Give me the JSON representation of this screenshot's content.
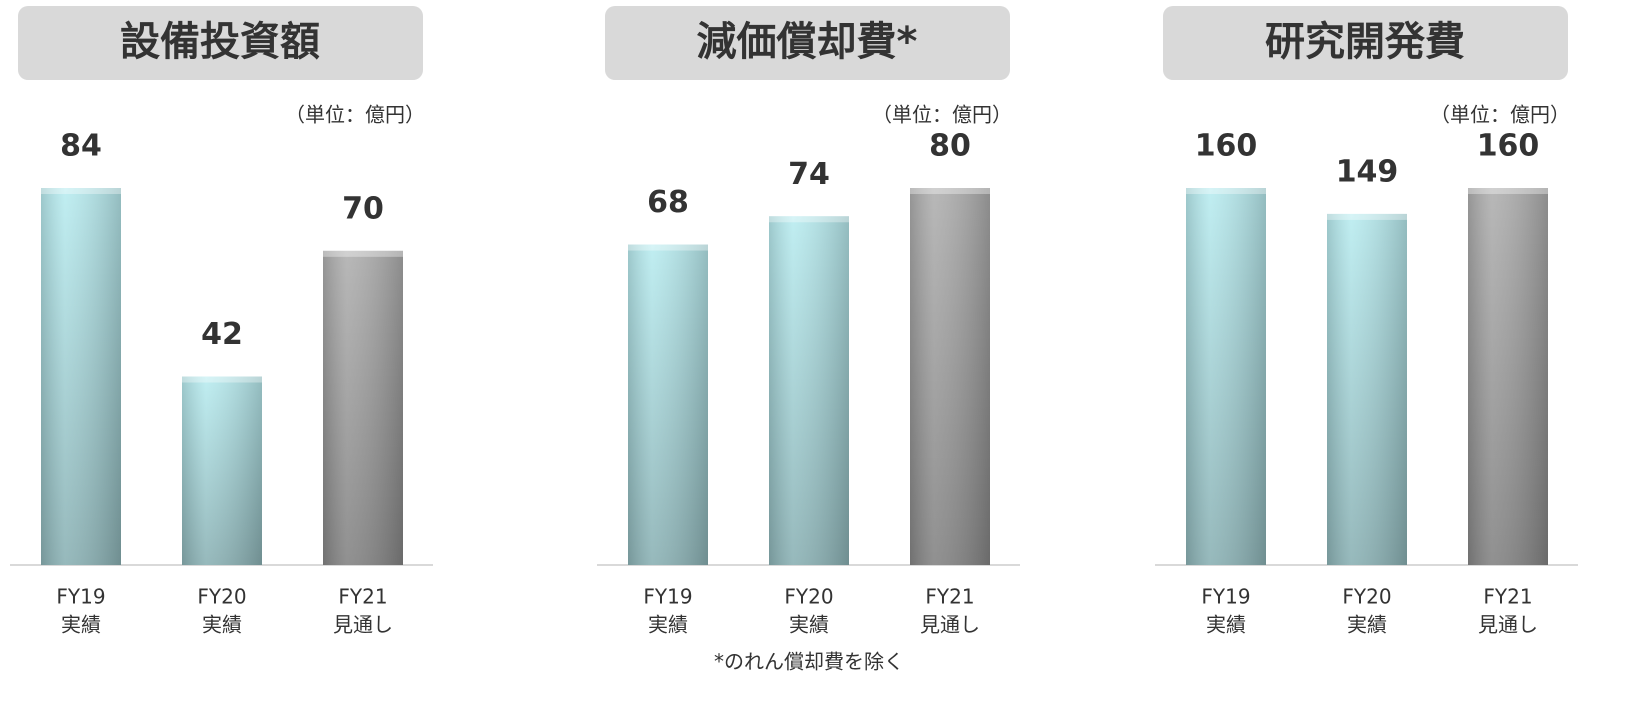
{
  "chart_data": [
    {
      "type": "bar",
      "title": "設備投資額",
      "unit": "（単位：億円）",
      "categories": [
        [
          "FY19",
          "実績"
        ],
        [
          "FY20",
          "実績"
        ],
        [
          "FY21",
          "見通し"
        ]
      ],
      "values": [
        84,
        42,
        70
      ],
      "colors": [
        "#b9ecf0",
        "#b9ecf0",
        "#b0b0b0"
      ]
    },
    {
      "type": "bar",
      "title": "減価償却費*",
      "unit": "（単位：億円）",
      "categories": [
        [
          "FY19",
          "実績"
        ],
        [
          "FY20",
          "実績"
        ],
        [
          "FY21",
          "見通し"
        ]
      ],
      "values": [
        68,
        74,
        80
      ],
      "colors": [
        "#b9ecf0",
        "#b9ecf0",
        "#b0b0b0"
      ],
      "footnote": "*のれん償却費を除く"
    },
    {
      "type": "bar",
      "title": "研究開発費",
      "unit": "（単位：億円）",
      "categories": [
        [
          "FY19",
          "実績"
        ],
        [
          "FY20",
          "実績"
        ],
        [
          "FY21",
          "見通し"
        ]
      ],
      "values": [
        160,
        149,
        160
      ],
      "colors": [
        "#b9ecf0",
        "#b9ecf0",
        "#b0b0b0"
      ]
    }
  ]
}
